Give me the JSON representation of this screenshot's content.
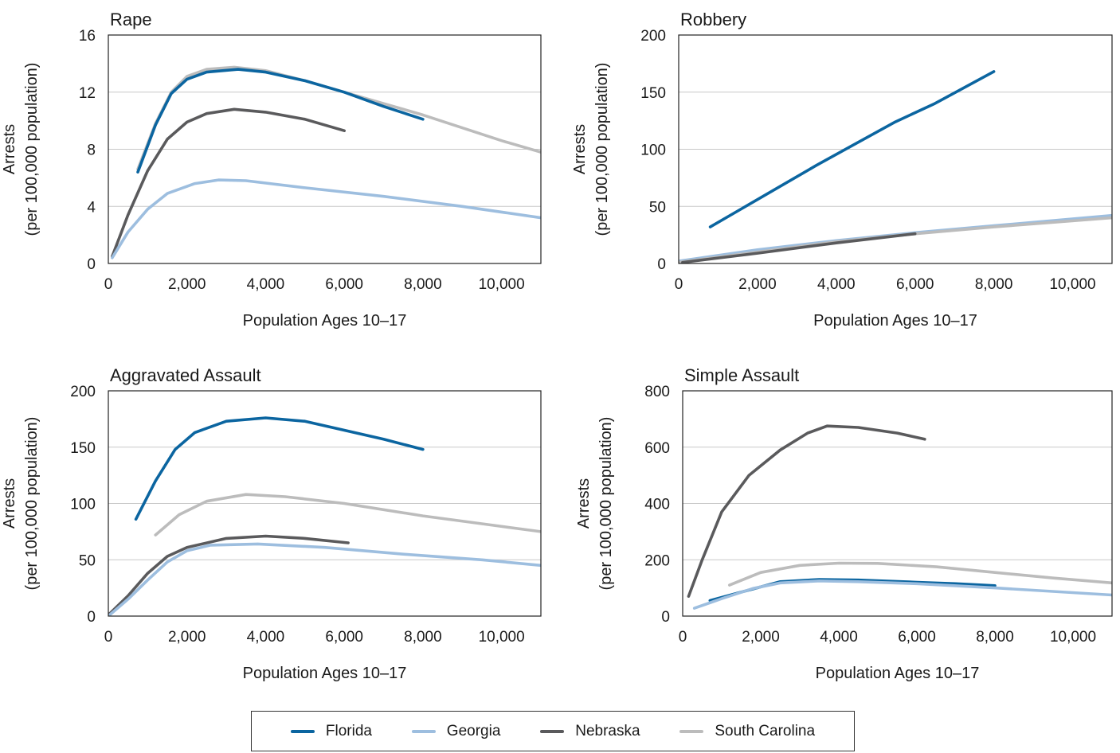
{
  "colors": {
    "Florida": "#0b65a0",
    "Georgia": "#9dbedf",
    "Nebraska": "#5a5a5c",
    "South Carolina": "#bcbcbc"
  },
  "legend": {
    "placement": "bottom-center",
    "items": [
      "Florida",
      "Georgia",
      "Nebraska",
      "South Carolina"
    ]
  },
  "chart_data": [
    {
      "type": "line",
      "title": "Rape",
      "xlabel": "Population Ages 10–17",
      "ylabel": [
        "Arrests",
        "(per 100,000 population)"
      ],
      "xlim": [
        0,
        11000
      ],
      "ylim": [
        0,
        16
      ],
      "xticks": [
        0,
        2000,
        4000,
        6000,
        8000,
        10000
      ],
      "xtick_labels": [
        "0",
        "2,000",
        "4,000",
        "6,000",
        "8,000",
        "10,000"
      ],
      "yticks": [
        0,
        4,
        8,
        12,
        16
      ],
      "ytick_labels": [
        "0",
        "4",
        "8",
        "12",
        "16"
      ],
      "grid": "horizontal",
      "series": [
        {
          "name": "South Carolina",
          "points": [
            [
              750,
              6.6
            ],
            [
              1200,
              9.8
            ],
            [
              1600,
              12.0
            ],
            [
              2000,
              13.1
            ],
            [
              2500,
              13.6
            ],
            [
              3200,
              13.75
            ],
            [
              4000,
              13.5
            ],
            [
              5000,
              12.8
            ],
            [
              6000,
              12.0
            ],
            [
              7000,
              11.2
            ],
            [
              8000,
              10.4
            ],
            [
              9000,
              9.5
            ],
            [
              10000,
              8.6
            ],
            [
              11000,
              7.8
            ]
          ]
        },
        {
          "name": "Florida",
          "points": [
            [
              750,
              6.4
            ],
            [
              1200,
              9.7
            ],
            [
              1600,
              11.9
            ],
            [
              2000,
              12.9
            ],
            [
              2500,
              13.4
            ],
            [
              3300,
              13.6
            ],
            [
              4000,
              13.4
            ],
            [
              5000,
              12.8
            ],
            [
              6000,
              12.0
            ],
            [
              7000,
              11.0
            ],
            [
              8000,
              10.1
            ]
          ]
        },
        {
          "name": "Nebraska",
          "points": [
            [
              100,
              0.5
            ],
            [
              500,
              3.4
            ],
            [
              1000,
              6.5
            ],
            [
              1500,
              8.7
            ],
            [
              2000,
              9.9
            ],
            [
              2500,
              10.5
            ],
            [
              3200,
              10.8
            ],
            [
              4000,
              10.6
            ],
            [
              5000,
              10.1
            ],
            [
              6000,
              9.3
            ]
          ]
        },
        {
          "name": "Georgia",
          "points": [
            [
              100,
              0.4
            ],
            [
              500,
              2.2
            ],
            [
              1000,
              3.8
            ],
            [
              1500,
              4.9
            ],
            [
              2200,
              5.6
            ],
            [
              2800,
              5.85
            ],
            [
              3500,
              5.8
            ],
            [
              5000,
              5.3
            ],
            [
              7000,
              4.7
            ],
            [
              9000,
              4.0
            ],
            [
              11000,
              3.2
            ]
          ]
        }
      ]
    },
    {
      "type": "line",
      "title": "Robbery",
      "xlabel": "Population Ages 10–17",
      "ylabel": [
        "Arrests",
        "(per 100,000 population)"
      ],
      "xlim": [
        0,
        11000
      ],
      "ylim": [
        0,
        200
      ],
      "xticks": [
        0,
        2000,
        4000,
        6000,
        8000,
        10000
      ],
      "xtick_labels": [
        "0",
        "2,000",
        "4,000",
        "6,000",
        "8,000",
        "10,000"
      ],
      "yticks": [
        0,
        50,
        100,
        150,
        200
      ],
      "ytick_labels": [
        "0",
        "50",
        "100",
        "150",
        "200"
      ],
      "grid": "horizontal",
      "series": [
        {
          "name": "Florida",
          "points": [
            [
              800,
              32
            ],
            [
              1500,
              46
            ],
            [
              2500,
              66
            ],
            [
              3500,
              86
            ],
            [
              4500,
              105
            ],
            [
              5500,
              124
            ],
            [
              6500,
              140
            ],
            [
              8000,
              168
            ]
          ]
        },
        {
          "name": "Georgia",
          "points": [
            [
              0,
              2
            ],
            [
              2000,
              12
            ],
            [
              4000,
              20
            ],
            [
              6000,
              27
            ],
            [
              8000,
              33
            ],
            [
              11000,
              42
            ]
          ]
        },
        {
          "name": "South Carolina",
          "points": [
            [
              0,
              1
            ],
            [
              2000,
              10
            ],
            [
              4000,
              19
            ],
            [
              6000,
              26
            ],
            [
              8000,
              32
            ],
            [
              11000,
              40
            ]
          ]
        },
        {
          "name": "Nebraska",
          "points": [
            [
              100,
              1
            ],
            [
              2000,
              9
            ],
            [
              4000,
              18
            ],
            [
              6000,
              26
            ]
          ]
        }
      ]
    },
    {
      "type": "line",
      "title": "Aggravated Assault",
      "xlabel": "Population Ages 10–17",
      "ylabel": [
        "Arrests",
        "(per 100,000 population)"
      ],
      "xlim": [
        0,
        11000
      ],
      "ylim": [
        0,
        200
      ],
      "xticks": [
        0,
        2000,
        4000,
        6000,
        8000,
        10000
      ],
      "xtick_labels": [
        "0",
        "2,000",
        "4,000",
        "6,000",
        "8,000",
        "10,000"
      ],
      "yticks": [
        0,
        50,
        100,
        150,
        200
      ],
      "ytick_labels": [
        "0",
        "50",
        "100",
        "150",
        "200"
      ],
      "grid": "horizontal",
      "series": [
        {
          "name": "Florida",
          "points": [
            [
              700,
              86
            ],
            [
              1200,
              120
            ],
            [
              1700,
              148
            ],
            [
              2200,
              163
            ],
            [
              3000,
              173
            ],
            [
              4000,
              176
            ],
            [
              5000,
              173
            ],
            [
              6000,
              165
            ],
            [
              7000,
              157
            ],
            [
              8000,
              148
            ]
          ]
        },
        {
          "name": "South Carolina",
          "points": [
            [
              1200,
              72
            ],
            [
              1800,
              90
            ],
            [
              2500,
              102
            ],
            [
              3500,
              108
            ],
            [
              4500,
              106
            ],
            [
              6000,
              100
            ],
            [
              8000,
              89
            ],
            [
              9500,
              82
            ],
            [
              11000,
              75
            ]
          ]
        },
        {
          "name": "Nebraska",
          "points": [
            [
              0,
              1
            ],
            [
              500,
              18
            ],
            [
              1000,
              38
            ],
            [
              1500,
              53
            ],
            [
              2000,
              61
            ],
            [
              3000,
              69
            ],
            [
              4000,
              71
            ],
            [
              5000,
              69
            ],
            [
              6100,
              65
            ]
          ]
        },
        {
          "name": "Georgia",
          "points": [
            [
              0,
              0
            ],
            [
              500,
              15
            ],
            [
              1000,
              32
            ],
            [
              1500,
              48
            ],
            [
              2000,
              58
            ],
            [
              2600,
              63
            ],
            [
              3800,
              64
            ],
            [
              5500,
              61
            ],
            [
              7500,
              55
            ],
            [
              9500,
              50
            ],
            [
              11000,
              45
            ]
          ]
        }
      ]
    },
    {
      "type": "line",
      "title": "Simple Assault",
      "xlabel": "Population Ages 10–17",
      "ylabel": [
        "Arrests",
        "(per 100,000 population)"
      ],
      "xlim": [
        0,
        11000
      ],
      "ylim": [
        0,
        800
      ],
      "xticks": [
        0,
        2000,
        4000,
        6000,
        8000,
        10000
      ],
      "xtick_labels": [
        "0",
        "2,000",
        "4,000",
        "6,000",
        "8,000",
        "10,000"
      ],
      "yticks": [
        0,
        200,
        400,
        600,
        800
      ],
      "ytick_labels": [
        "0",
        "200",
        "400",
        "600",
        "800"
      ],
      "grid": "horizontal",
      "series": [
        {
          "name": "Nebraska",
          "points": [
            [
              150,
              70
            ],
            [
              500,
              200
            ],
            [
              1000,
              370
            ],
            [
              1700,
              500
            ],
            [
              2500,
              590
            ],
            [
              3200,
              650
            ],
            [
              3700,
              675
            ],
            [
              4500,
              670
            ],
            [
              5500,
              650
            ],
            [
              6200,
              628
            ]
          ]
        },
        {
          "name": "South Carolina",
          "points": [
            [
              1200,
              110
            ],
            [
              2000,
              155
            ],
            [
              3000,
              180
            ],
            [
              4000,
              188
            ],
            [
              5000,
              187
            ],
            [
              6500,
              175
            ],
            [
              8000,
              155
            ],
            [
              9500,
              135
            ],
            [
              11000,
              118
            ]
          ]
        },
        {
          "name": "Florida",
          "points": [
            [
              700,
              55
            ],
            [
              1500,
              85
            ],
            [
              2500,
              122
            ],
            [
              3500,
              130
            ],
            [
              4500,
              128
            ],
            [
              6000,
              120
            ],
            [
              7000,
              115
            ],
            [
              8000,
              108
            ]
          ]
        },
        {
          "name": "Georgia",
          "points": [
            [
              300,
              28
            ],
            [
              1000,
              62
            ],
            [
              1800,
              98
            ],
            [
              2500,
              118
            ],
            [
              3500,
              125
            ],
            [
              4500,
              122
            ],
            [
              6000,
              115
            ],
            [
              8000,
              100
            ],
            [
              11000,
              75
            ]
          ]
        }
      ]
    }
  ]
}
